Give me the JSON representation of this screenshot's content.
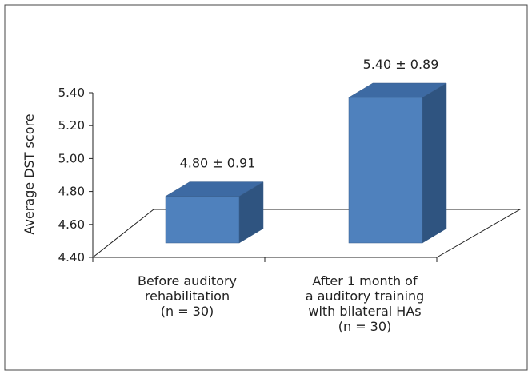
{
  "chart_data": {
    "type": "bar",
    "title": "",
    "xlabel": "",
    "ylabel": "Average DST score",
    "ylim": [
      4.4,
      5.4
    ],
    "yticks": [
      "4.40",
      "4.60",
      "4.80",
      "5.00",
      "5.20",
      "5.40"
    ],
    "ytick_values": [
      4.4,
      4.6,
      4.8,
      5.0,
      5.2,
      5.4
    ],
    "categories": [
      [
        "Before auditory",
        "rehabilitation",
        "(n = 30)"
      ],
      [
        "After 1 month of",
        "a auditory training",
        "with bilateral HAs",
        "(n = 30)"
      ]
    ],
    "values": [
      4.8,
      5.4
    ],
    "data_labels": [
      "4.80 ± 0.91",
      "5.40 ± 0.89"
    ],
    "grid": false,
    "legend": "none",
    "style": "3d-column",
    "colors": {
      "front": "#4f81bd",
      "top": "#3d6aa3",
      "side": "#2f5480",
      "edge": "#385d8a",
      "axis": "#222222"
    }
  }
}
